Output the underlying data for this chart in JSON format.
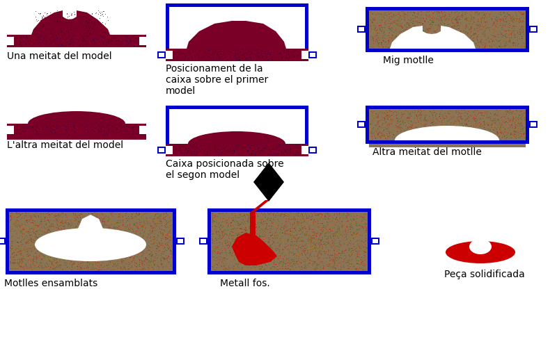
{
  "bg_color": "#ffffff",
  "sand_base": "#8B7355",
  "blue_frame": "#0000cc",
  "white_c": "#ffffff",
  "darkred_c": "#7B0028",
  "red_c": "#cc0000",
  "black_c": "#000000",
  "green_dot": "#336600",
  "orange_dot": "#cc7700",
  "labels": {
    "p1": "Una meitat del model",
    "p2": "Posicionament de la\ncaixa sobre el primer\nmodel",
    "p3": "Mig motlle",
    "p4": "L'altra meitat del model",
    "p5": "Caixa posicionada sobre\nel segon model",
    "p6": "Altra meitat del motlle",
    "p7": "Motlles ensamblats",
    "p8": "Metall fos.",
    "p9": "Peça solidificada"
  },
  "lfs": 10
}
